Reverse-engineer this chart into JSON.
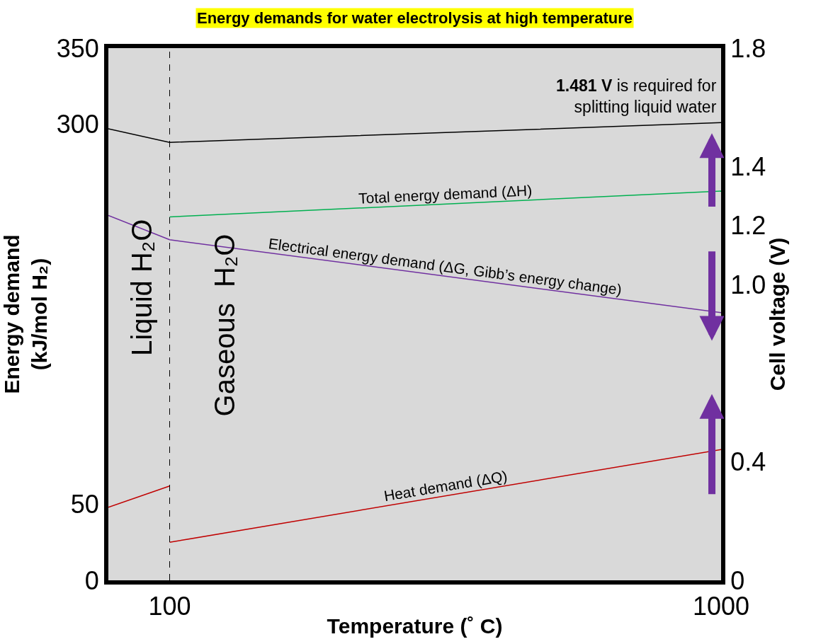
{
  "chart_data": {
    "type": "line",
    "title": "Energy demands for water electrolysis at high temperature",
    "xlabel": "Temperature (˚ C)",
    "ylabel": "Energy demand\n(kJ/mol H₂)",
    "y2label": "Cell voltage (V)",
    "xlim": [
      0,
      1000
    ],
    "xticks": [
      100,
      1000
    ],
    "ylim": [
      0,
      350
    ],
    "yticks": [
      0,
      50,
      300,
      350
    ],
    "y2lim": [
      0,
      1.8
    ],
    "y2ticks": [
      0,
      0.4,
      {
        "value": 1.0,
        "label": "1.0"
      },
      1.2,
      1.4,
      1.8
    ],
    "grid": false,
    "legend": false,
    "series": [
      {
        "x": [
          0,
          100,
          1000
        ],
        "values": [
          297,
          288,
          301
        ],
        "color": "#000000"
      },
      {
        "name": "Total energy demand (ΔH)",
        "x": [
          100,
          1000
        ],
        "values": [
          239,
          256
        ],
        "color": "#00b050"
      },
      {
        "name": "Electrical energy demand (ΔG, Gibb’s energy change)",
        "x": [
          0,
          100,
          1000
        ],
        "values": [
          240,
          224,
          176
        ],
        "color": "#7030a0"
      },
      {
        "x": [
          0,
          100
        ],
        "values": [
          48,
          62
        ],
        "color": "#c00000"
      },
      {
        "name": "Heat demand (ΔQ)",
        "x": [
          100,
          1000
        ],
        "values": [
          25,
          86
        ],
        "color": "#c00000"
      }
    ],
    "ref_lines": [
      {
        "axis": "x",
        "value": 100,
        "color": "#000000",
        "line_style": "dashed"
      }
    ],
    "annotations": [
      "Liquid H₂O",
      "Gaseous  H₂O",
      "1.481 V is required for\nsplitting liquid water"
    ]
  }
}
